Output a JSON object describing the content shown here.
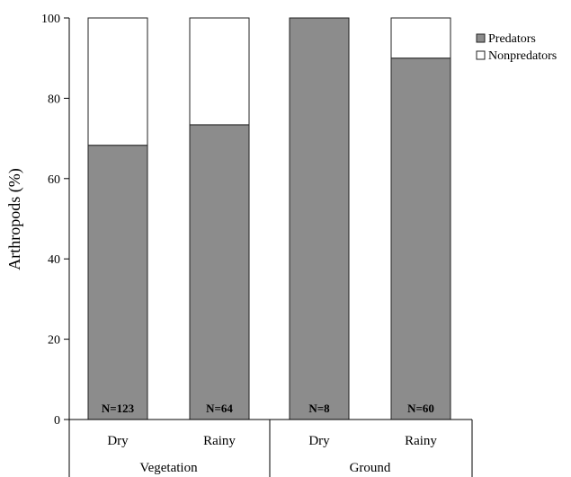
{
  "chart_data": {
    "type": "bar",
    "stacked": true,
    "title": "",
    "xlabel": "",
    "ylabel": "Arthropods (%)",
    "ylim": [
      0,
      100
    ],
    "yticks": [
      0,
      20,
      40,
      60,
      80,
      100
    ],
    "grid": false,
    "legend_position": "top-right",
    "categories": [
      "Dry",
      "Rainy",
      "Dry",
      "Rainy"
    ],
    "groups": [
      {
        "label": "Vegetation",
        "categories": [
          0,
          1
        ]
      },
      {
        "label": "Ground",
        "categories": [
          2,
          3
        ]
      }
    ],
    "bar_labels": [
      "N=123",
      "N=64",
      "N=8",
      "N=60"
    ],
    "series": [
      {
        "name": "Predators",
        "values": [
          68.3,
          73.4,
          100,
          90
        ],
        "color": "#8c8c8c"
      },
      {
        "name": "Nonpredators",
        "values": [
          31.7,
          26.6,
          0,
          10
        ],
        "color": "#ffffff"
      }
    ]
  }
}
